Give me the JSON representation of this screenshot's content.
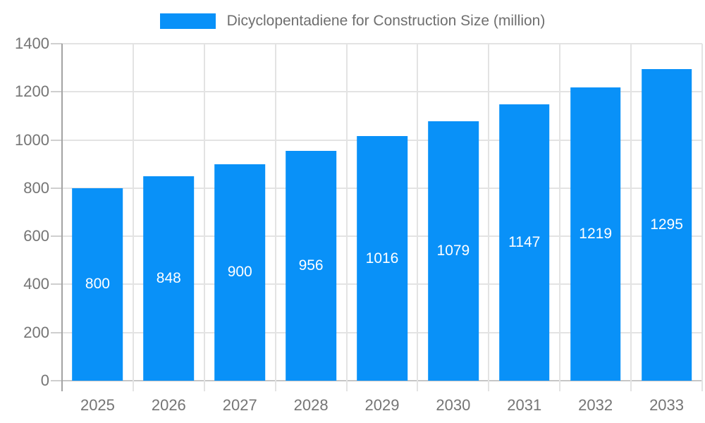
{
  "legend": {
    "label": "Dicyclopentadiene for Construction Size (million)"
  },
  "colors": {
    "bar": "#0991f8",
    "value_label": "#ffffff",
    "axis_text": "#757575",
    "gridline": "#e3e3e3"
  },
  "chart_data": {
    "type": "bar",
    "title": "Dicyclopentadiene for Construction Size (million)",
    "categories": [
      "2025",
      "2026",
      "2027",
      "2028",
      "2029",
      "2030",
      "2031",
      "2032",
      "2033"
    ],
    "values": [
      800,
      848,
      900,
      956,
      1016,
      1079,
      1147,
      1219,
      1295
    ],
    "xlabel": "",
    "ylabel": "",
    "ylim": [
      0,
      1400
    ],
    "yticks": [
      0,
      200,
      400,
      600,
      800,
      1000,
      1200,
      1400
    ],
    "grid": "on",
    "legend_position": "top-center",
    "value_labels": "inside-center"
  }
}
